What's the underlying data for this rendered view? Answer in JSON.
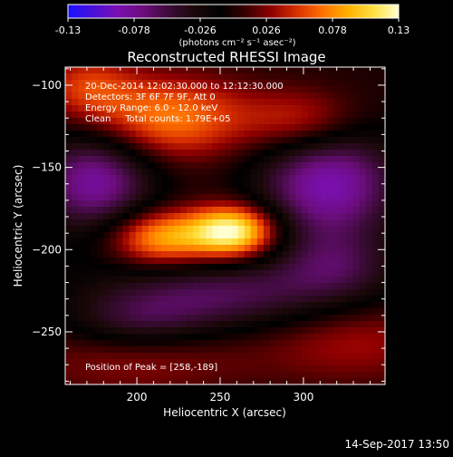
{
  "colorbar": {
    "tick_labels": [
      "-0.13",
      "-0.078",
      "-0.026",
      "0.026",
      "0.078",
      "0.13"
    ],
    "units_text": "(photons cm⁻² s⁻¹ asec⁻²)",
    "colors": [
      "#1a10ff",
      "#4a10d8",
      "#7a0fb0",
      "#6a0d7a",
      "#3a0b35",
      "#1a0808",
      "#000000",
      "#3a0000",
      "#900000",
      "#d83000",
      "#ff7000",
      "#ffb000",
      "#ffe040",
      "#ffffd0"
    ]
  },
  "chart_data": {
    "type": "heatmap",
    "title": "Reconstructed RHESSI Image",
    "xlabel": "Heliocentric X (arcsec)",
    "ylabel": "Heliocentric Y (arcsec)",
    "xlim": [
      157,
      349
    ],
    "ylim": [
      -282,
      -89
    ],
    "xticks": [
      200,
      250,
      300
    ],
    "yticks": [
      -100,
      -150,
      -200,
      -250
    ],
    "zlim": [
      -0.13,
      0.13
    ],
    "annotations": [
      "20-Dec-2014 12:02:30.000 to 12:12:30.000",
      "Detectors: 3F 6F 7F 9F, Att 0",
      "Energy Range: 6.0 - 12.0 keV",
      "Clean     Total counts: 1.79E+05"
    ],
    "peak_text": "Position of Peak = [258,-189]",
    "peak": [
      258,
      -189
    ],
    "sources": [
      {
        "x": 258,
        "y": -189,
        "sx": 18,
        "sy": 11,
        "amp": 0.13
      },
      {
        "x": 215,
        "y": -193,
        "sx": 22,
        "sy": 12,
        "amp": 0.09
      },
      {
        "x": 218,
        "y": -120,
        "sx": 35,
        "sy": 18,
        "amp": 0.075
      },
      {
        "x": 300,
        "y": -122,
        "sx": 25,
        "sy": 14,
        "amp": 0.05
      },
      {
        "x": 170,
        "y": -100,
        "sx": 20,
        "sy": 14,
        "amp": 0.045
      },
      {
        "x": 330,
        "y": -255,
        "sx": 40,
        "sy": 18,
        "amp": 0.035
      },
      {
        "x": 200,
        "y": -265,
        "sx": 50,
        "sy": 18,
        "amp": 0.03
      },
      {
        "x": 175,
        "y": -158,
        "sx": 25,
        "sy": 22,
        "amp": -0.085
      },
      {
        "x": 315,
        "y": -160,
        "sx": 30,
        "sy": 25,
        "amp": -0.09
      },
      {
        "x": 250,
        "y": -228,
        "sx": 55,
        "sy": 16,
        "amp": -0.06
      },
      {
        "x": 200,
        "y": -245,
        "sx": 30,
        "sy": 12,
        "amp": -0.04
      },
      {
        "x": 320,
        "y": -210,
        "sx": 25,
        "sy": 15,
        "amp": -0.04
      }
    ]
  },
  "timestamp": "14-Sep-2017 13:50"
}
